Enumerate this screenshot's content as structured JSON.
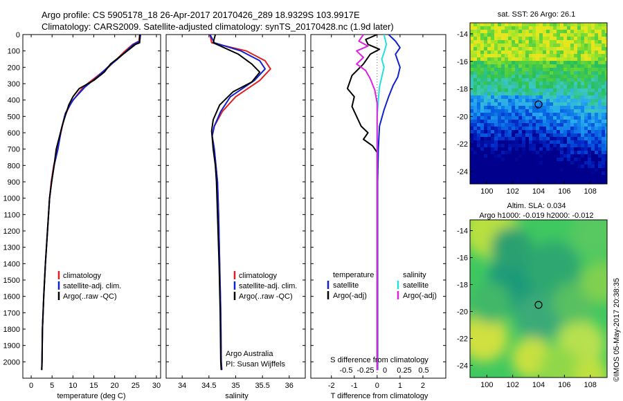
{
  "header": {
    "line1": "Argo profile: CS 5905178_18 26-Apr-2017 20170426_289 18.9329S 103.9917E",
    "line2": "Climatology: CARS2009. Satellite-adjusted climatology: synTS_20170428.nc (1.9d later)"
  },
  "colors": {
    "climatology": "#e02020",
    "satellite": "#1020d0",
    "argo": "#000000",
    "sat_salinity": "#20e0e0",
    "argo_salinity": "#e020e0"
  },
  "chart_data": [
    {
      "type": "line",
      "xlabel": "temperature (deg C)",
      "ylabel": "",
      "xlim": [
        -2,
        31
      ],
      "ylim": [
        2100,
        0
      ],
      "xticks": [
        0,
        5,
        10,
        15,
        20,
        25,
        30
      ],
      "yticks": [
        0,
        100,
        200,
        300,
        400,
        500,
        600,
        700,
        800,
        900,
        1000,
        1100,
        1200,
        1300,
        1400,
        1500,
        1600,
        1700,
        1800,
        1900,
        2000
      ],
      "legend": [
        "climatology",
        "satellite-adj. clim.",
        "Argo(..raw -QC)"
      ],
      "series": [
        {
          "name": "climatology",
          "color": "#e02020",
          "points": [
            [
              26,
              0
            ],
            [
              25.8,
              40
            ],
            [
              24.3,
              60
            ],
            [
              22.5,
              100
            ],
            [
              20.5,
              150
            ],
            [
              18.5,
              200
            ],
            [
              15.5,
              260
            ],
            [
              12.5,
              320
            ],
            [
              9.5,
              420
            ],
            [
              8,
              500
            ],
            [
              7.1,
              600
            ],
            [
              6.3,
              700
            ],
            [
              5.4,
              800
            ],
            [
              4.8,
              900
            ],
            [
              4.4,
              1000
            ],
            [
              3.9,
              1200
            ],
            [
              3.4,
              1400
            ],
            [
              3.0,
              1600
            ],
            [
              2.7,
              1800
            ],
            [
              2.6,
              2000
            ],
            [
              2.55,
              2050
            ]
          ]
        },
        {
          "name": "satellite-adj. clim.",
          "color": "#1020d0",
          "points": [
            [
              26.2,
              0
            ],
            [
              26,
              40
            ],
            [
              24.5,
              60
            ],
            [
              22.8,
              100
            ],
            [
              20.7,
              150
            ],
            [
              18.3,
              200
            ],
            [
              15.8,
              260
            ],
            [
              12.9,
              320
            ],
            [
              10,
              400
            ],
            [
              8.2,
              480
            ],
            [
              7.2,
              580
            ],
            [
              6.4,
              700
            ],
            [
              5.5,
              800
            ],
            [
              4.9,
              900
            ],
            [
              4.4,
              1000
            ],
            [
              3.9,
              1200
            ],
            [
              3.4,
              1400
            ],
            [
              3.0,
              1600
            ],
            [
              2.7,
              1800
            ],
            [
              2.6,
              2000
            ],
            [
              2.5,
              2050
            ]
          ]
        },
        {
          "name": "Argo(..raw -QC)",
          "color": "#000000",
          "points": [
            [
              26,
              0
            ],
            [
              26,
              50
            ],
            [
              25,
              60
            ],
            [
              23.5,
              90
            ],
            [
              21.5,
              130
            ],
            [
              19,
              180
            ],
            [
              17.5,
              230
            ],
            [
              15,
              280
            ],
            [
              11.5,
              330
            ],
            [
              10,
              380
            ],
            [
              9,
              430
            ],
            [
              8,
              510
            ],
            [
              7.4,
              560
            ],
            [
              6.8,
              620
            ],
            [
              6,
              700
            ],
            [
              5.5,
              800
            ],
            [
              4.9,
              900
            ],
            [
              4.4,
              1000
            ],
            [
              3.9,
              1200
            ],
            [
              3.4,
              1400
            ],
            [
              3.0,
              1600
            ],
            [
              2.7,
              1800
            ],
            [
              2.6,
              2000
            ],
            [
              2.55,
              2050
            ]
          ]
        }
      ]
    },
    {
      "type": "line",
      "xlabel": "salinity",
      "ylabel": "",
      "xlim": [
        33.7,
        36.3
      ],
      "ylim": [
        2100,
        0
      ],
      "xticks": [
        34,
        34.5,
        35,
        35.5,
        36
      ],
      "legend": [
        "climatology",
        "satellite-adj. clim.",
        "Argo(..raw -QC)"
      ],
      "annotations": [
        "Argo Australia",
        "PI: Susan Wijffels"
      ],
      "series": [
        {
          "name": "climatology",
          "color": "#e02020",
          "points": [
            [
              34.52,
              0
            ],
            [
              34.55,
              50
            ],
            [
              35.2,
              100
            ],
            [
              35.55,
              160
            ],
            [
              35.65,
              210
            ],
            [
              35.45,
              280
            ],
            [
              35.0,
              380
            ],
            [
              34.75,
              470
            ],
            [
              34.6,
              560
            ],
            [
              34.56,
              620
            ],
            [
              34.6,
              700
            ],
            [
              34.63,
              800
            ],
            [
              34.66,
              900
            ],
            [
              34.68,
              1100
            ],
            [
              34.7,
              1400
            ],
            [
              34.72,
              1700
            ],
            [
              34.73,
              2000
            ],
            [
              34.74,
              2050
            ]
          ]
        },
        {
          "name": "satellite-adj. clim.",
          "color": "#1020d0",
          "points": [
            [
              34.52,
              0
            ],
            [
              34.6,
              50
            ],
            [
              35.1,
              100
            ],
            [
              35.45,
              160
            ],
            [
              35.55,
              210
            ],
            [
              35.35,
              280
            ],
            [
              34.9,
              380
            ],
            [
              34.72,
              470
            ],
            [
              34.6,
              560
            ],
            [
              34.56,
              620
            ],
            [
              34.6,
              700
            ],
            [
              34.63,
              800
            ],
            [
              34.66,
              900
            ],
            [
              34.68,
              1100
            ],
            [
              34.7,
              1400
            ],
            [
              34.72,
              1700
            ],
            [
              34.73,
              2000
            ],
            [
              34.74,
              2050
            ]
          ]
        },
        {
          "name": "Argo(..raw -QC)",
          "color": "#000000",
          "points": [
            [
              34.62,
              0
            ],
            [
              34.58,
              50
            ],
            [
              35.05,
              120
            ],
            [
              35.3,
              180
            ],
            [
              35.45,
              230
            ],
            [
              35.3,
              290
            ],
            [
              34.95,
              350
            ],
            [
              34.7,
              430
            ],
            [
              34.58,
              520
            ],
            [
              34.55,
              590
            ],
            [
              34.58,
              700
            ],
            [
              34.62,
              800
            ],
            [
              34.64,
              900
            ],
            [
              34.66,
              1100
            ],
            [
              34.69,
              1400
            ],
            [
              34.71,
              1700
            ],
            [
              34.72,
              2000
            ],
            [
              34.73,
              2050
            ]
          ]
        }
      ]
    },
    {
      "type": "line",
      "xlabel": "T difference from climatology",
      "ylabel": "",
      "top_axis_label": "S difference from climatology",
      "xlim": [
        -2.9,
        3.0
      ],
      "ylim": [
        2100,
        0
      ],
      "xticks": [
        -2,
        -1,
        0,
        1,
        2
      ],
      "top_xticks": [
        "-0.5",
        "-0.25",
        "0",
        "0.25",
        "0.5"
      ],
      "legend": [
        "temperature",
        "satellite",
        "Argo(-adj)",
        "salinity",
        "satellite",
        "Argo(-adj)"
      ],
      "series": [
        {
          "name": "satellite",
          "color": "#1020d0",
          "points": [
            [
              0.5,
              0
            ],
            [
              0.8,
              40
            ],
            [
              1.0,
              80
            ],
            [
              0.8,
              120
            ],
            [
              0.9,
              160
            ],
            [
              1.0,
              200
            ],
            [
              0.9,
              260
            ],
            [
              0.7,
              310
            ],
            [
              0.5,
              380
            ],
            [
              0.3,
              460
            ],
            [
              0.1,
              560
            ],
            [
              0.05,
              700
            ],
            [
              0.02,
              900
            ],
            [
              0.02,
              1200
            ],
            [
              0.02,
              1600
            ],
            [
              0.02,
              2000
            ],
            [
              0.02,
              2050
            ]
          ]
        },
        {
          "name": "Argo(-adj)",
          "color": "#000000",
          "points": [
            [
              0,
              0
            ],
            [
              -0.5,
              30
            ],
            [
              -0.4,
              60
            ],
            [
              0.1,
              90
            ],
            [
              -0.3,
              120
            ],
            [
              -0.6,
              180
            ],
            [
              -1.1,
              250
            ],
            [
              -1.3,
              330
            ],
            [
              -1.0,
              380
            ],
            [
              -1.1,
              440
            ],
            [
              -0.9,
              500
            ],
            [
              -0.7,
              560
            ],
            [
              -0.4,
              600
            ],
            [
              -0.6,
              640
            ],
            [
              -0.2,
              680
            ],
            [
              0,
              720
            ],
            [
              0,
              900
            ],
            [
              0,
              1200
            ],
            [
              0,
              1600
            ],
            [
              0,
              2000
            ],
            [
              0,
              2050
            ]
          ]
        },
        {
          "name": "salinity satellite",
          "color": "#20e0e0",
          "points": [
            [
              0.3,
              0
            ],
            [
              0.4,
              60
            ],
            [
              0.3,
              110
            ],
            [
              0.2,
              150
            ],
            [
              0.3,
              200
            ],
            [
              0.2,
              260
            ],
            [
              0.1,
              320
            ],
            [
              0.05,
              400
            ],
            [
              0,
              500
            ],
            [
              0,
              700
            ],
            [
              0,
              1000
            ],
            [
              0,
              1500
            ],
            [
              0,
              2050
            ]
          ]
        },
        {
          "name": "Argo(-adj) salinity",
          "color": "#e020e0",
          "points": [
            [
              -0.6,
              0
            ],
            [
              -0.8,
              40
            ],
            [
              -0.4,
              70
            ],
            [
              -0.9,
              100
            ],
            [
              -0.6,
              140
            ],
            [
              -0.9,
              180
            ],
            [
              -0.5,
              220
            ],
            [
              -0.3,
              270
            ],
            [
              -0.1,
              340
            ],
            [
              0,
              420
            ],
            [
              0,
              700
            ],
            [
              0,
              1000
            ],
            [
              0,
              1500
            ],
            [
              0,
              2050
            ]
          ]
        }
      ]
    },
    {
      "type": "heatmap",
      "title": "sat. SST: 26  Argo: 26.1",
      "xlim": [
        98.7,
        109.3
      ],
      "ylim": [
        -24.9,
        -13.2
      ],
      "xticks": [
        100,
        102,
        104,
        106,
        108
      ],
      "yticks": [
        -14,
        -16,
        -18,
        -20,
        -22,
        -24
      ],
      "marker": [
        104,
        -19
      ]
    },
    {
      "type": "heatmap",
      "title": "Altim. SLA: 0.034",
      "subtitle": "Argo h1000: -0.019  h2000: -0.012",
      "xlim": [
        98.7,
        109.3
      ],
      "ylim": [
        -24.9,
        -13.2
      ],
      "xticks": [
        100,
        102,
        104,
        106,
        108
      ],
      "yticks": [
        -14,
        -16,
        -18,
        -20,
        -22,
        -24
      ],
      "marker": [
        104,
        -19
      ]
    }
  ],
  "credit": "©IMOS 05-May-2017 20:38:35"
}
